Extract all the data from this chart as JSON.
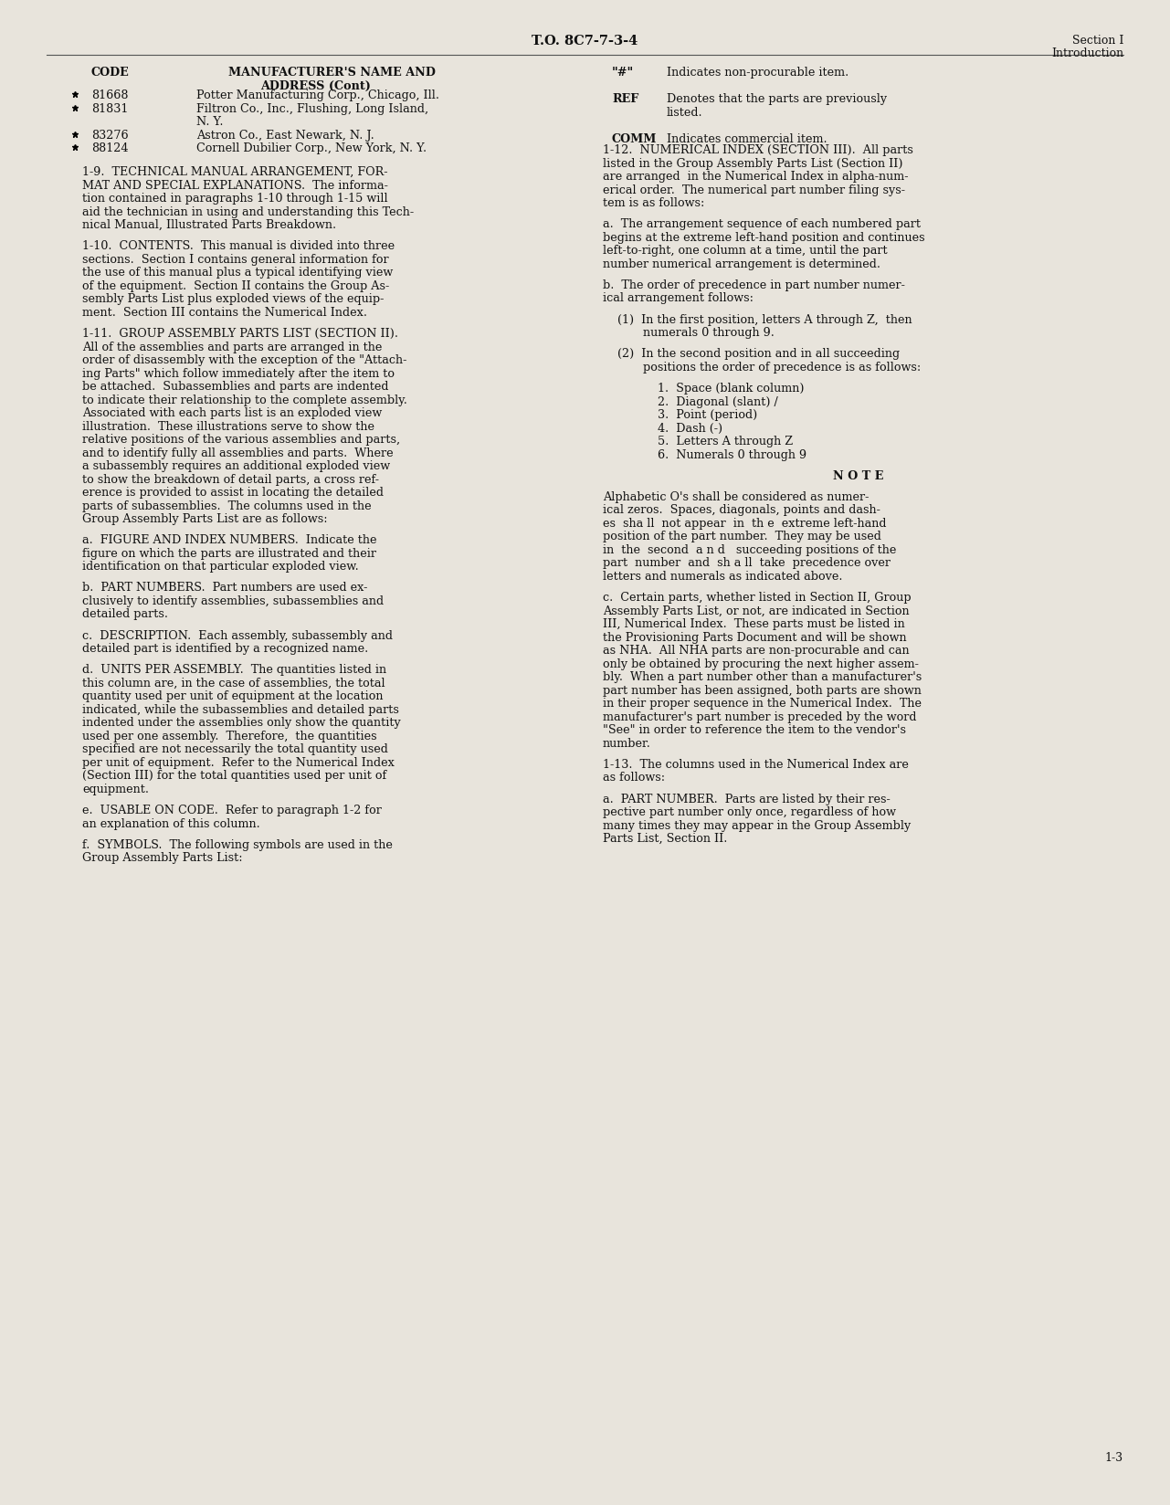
{
  "bg_color": "#e8e4dc",
  "text_color": "#111111",
  "header_center": "T.O. 8C7-7-3-4",
  "header_right_line1": "Section I",
  "header_right_line2": "Introduction",
  "footer_right": "1-3",
  "left_col_lines": [
    {
      "type": "header",
      "text": "CODE          MANUFACTURER'S NAME AND\n                    ADDRESS (Cont)"
    },
    {
      "type": "blank"
    },
    {
      "type": "bullet",
      "code": "81668",
      "name": "Potter Manufacturing Corp., Chicago, Ill."
    },
    {
      "type": "bullet",
      "code": "81831",
      "name": "Filtron Co., Inc., Flushing, Long Island,\n                   N. Y."
    },
    {
      "type": "bullet",
      "code": "83276",
      "name": "Astron Co., East Newark, N. J."
    },
    {
      "type": "bullet",
      "code": "88124",
      "name": "Cornell Dubilier Corp., New York, N. Y."
    }
  ],
  "right_symbol_lines": [
    {
      "symbol": "\"#\"",
      "indent": 0,
      "text": "Indicates non-procurable item."
    },
    {
      "symbol": "REF",
      "indent": 0,
      "text": "Denotes that the parts are previously\n         listed."
    },
    {
      "symbol": "COMM",
      "indent": 0,
      "text": "Indicates commercial item."
    }
  ],
  "left_body": [
    "1-9.  TECHNICAL MANUAL ARRANGEMENT, FOR-",
    "MAT AND SPECIAL EXPLANATIONS.  The informa-",
    "tion contained in paragraphs 1-10 through 1-15 will",
    "aid the technician in using and understanding this Tech-",
    "nical Manual, Illustrated Parts Breakdown.",
    "",
    "1-10.  CONTENTS.  This manual is divided into three",
    "sections.  Section I contains general information for",
    "the use of this manual plus a typical identifying view",
    "of the equipment.  Section II contains the Group As-",
    "sembly Parts List plus exploded views of the equip-",
    "ment.  Section III contains the Numerical Index.",
    "",
    "1-11.  GROUP ASSEMBLY PARTS LIST (SECTION II).",
    "All of the assemblies and parts are arranged in the",
    "order of disassembly with the exception of the \"Attach-",
    "ing Parts\" which follow immediately after the item to",
    "be attached.  Subassemblies and parts are indented",
    "to indicate their relationship to the complete assembly.",
    "Associated with each parts list is an exploded view",
    "illustration.  These illustrations serve to show the",
    "relative positions of the various assemblies and parts,",
    "and to identify fully all assemblies and parts.  Where",
    "a subassembly requires an additional exploded view",
    "to show the breakdown of detail parts, a cross ref-",
    "erence is provided to assist in locating the detailed",
    "parts of subassemblies.  The columns used in the",
    "Group Assembly Parts List are as follows:",
    "",
    "a.  FIGURE AND INDEX NUMBERS.  Indicate the",
    "figure on which the parts are illustrated and their",
    "identification on that particular exploded view.",
    "",
    "b.  PART NUMBERS.  Part numbers are used ex-",
    "clusively to identify assemblies, subassemblies and",
    "detailed parts.",
    "",
    "c.  DESCRIPTION.  Each assembly, subassembly and",
    "detailed part is identified by a recognized name.",
    "",
    "d.  UNITS PER ASSEMBLY.  The quantities listed in",
    "this column are, in the case of assemblies, the total",
    "quantity used per unit of equipment at the location",
    "indicated, while the subassemblies and detailed parts",
    "indented under the assemblies only show the quantity",
    "used per one assembly.  Therefore,  the quantities",
    "specified are not necessarily the total quantity used",
    "per unit of equipment.  Refer to the Numerical Index",
    "(Section III) for the total quantities used per unit of",
    "equipment.",
    "",
    "e.  USABLE ON CODE.  Refer to paragraph 1-2 for",
    "an explanation of this column.",
    "",
    "f.  SYMBOLS.  The following symbols are used in the",
    "Group Assembly Parts List:"
  ],
  "right_body": [
    "1-12.  NUMERICAL INDEX (SECTION III).  All parts",
    "listed in the Group Assembly Parts List (Section II)",
    "are arranged  in the Numerical Index in alpha-num-",
    "erical order.  The numerical part number filing sys-",
    "tem is as follows:",
    "",
    "a.  The arrangement sequence of each numbered part",
    "begins at the extreme left-hand position and continues",
    "left-to-right, one column at a time, until the part",
    "number numerical arrangement is determined.",
    "",
    "b.  The order of precedence in part number numer-",
    "ical arrangement follows:",
    "",
    "    (1)  In the first position, letters A through Z,  then",
    "           numerals 0 through 9.",
    "",
    "    (2)  In the second position and in all succeeding",
    "           positions the order of precedence is as follows:",
    "",
    "               1.  Space (blank column)",
    "               2.  Diagonal (slant) /",
    "               3.  Point (period)",
    "               4.  Dash (-)",
    "               5.  Letters A through Z",
    "               6.  Numerals 0 through 9",
    "",
    "                         N O T E",
    "",
    "Alphabetic O's shall be considered as numer-",
    "ical zeros.  Spaces, diagonals, points and dash-",
    "es  sha ll  not appear  in  th e  extreme left-hand",
    "position of the part number.  They may be used",
    "in  the  second  a n d   succeeding positions of the",
    "part  number  and  sh a ll  take  precedence over",
    "letters and numerals as indicated above.",
    "",
    "c.  Certain parts, whether listed in Section II, Group",
    "Assembly Parts List, or not, are indicated in Section",
    "III, Numerical Index.  These parts must be listed in",
    "the Provisioning Parts Document and will be shown",
    "as NHA.  All NHA parts are non-procurable and can",
    "only be obtained by procuring the next higher assem-",
    "bly.  When a part number other than a manufacturer's",
    "part number has been assigned, both parts are shown",
    "in their proper sequence in the Numerical Index.  The",
    "manufacturer's part number is preceded by the word",
    "\"See\" in order to reference the item to the vendor's",
    "number.",
    "",
    "1-13.  The columns used in the Numerical Index are",
    "as follows:",
    "",
    "a.  PART NUMBER.  Parts are listed by their res-",
    "pective part number only once, regardless of how",
    "many times they may appear in the Group Assembly",
    "Parts List, Section II."
  ]
}
